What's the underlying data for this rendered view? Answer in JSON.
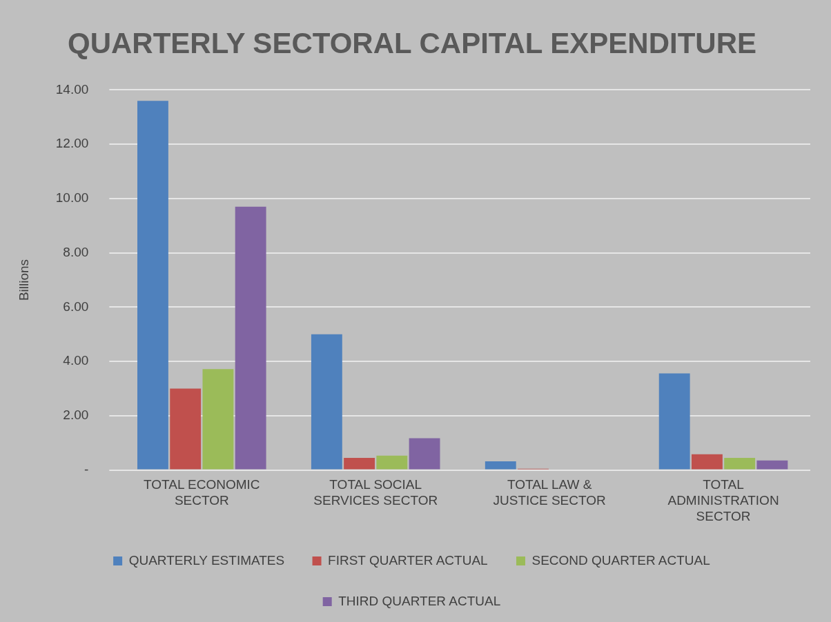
{
  "chart_data": {
    "type": "bar",
    "title": "QUARTERLY SECTORAL CAPITAL EXPENDITURE",
    "ylabel": "Billions",
    "categories": [
      "TOTAL ECONOMIC SECTOR",
      "TOTAL SOCIAL SERVICES SECTOR",
      "TOTAL LAW & JUSTICE SECTOR",
      "TOTAL ADMINISTRATION SECTOR"
    ],
    "series": [
      {
        "name": "QUARTERLY ESTIMATES",
        "color": "#4f81bd",
        "values": [
          13.6,
          5.0,
          0.32,
          3.56
        ]
      },
      {
        "name": "FIRST QUARTER ACTUAL",
        "color": "#c0504d",
        "values": [
          3.0,
          0.45,
          0.05,
          0.58
        ]
      },
      {
        "name": "SECOND QUARTER ACTUAL",
        "color": "#9bbb59",
        "values": [
          3.72,
          0.53,
          null,
          0.45
        ]
      },
      {
        "name": "THIRD QUARTER ACTUAL",
        "color": "#8064a2",
        "values": [
          9.7,
          1.17,
          null,
          0.35
        ]
      }
    ],
    "ylim": [
      0,
      14
    ],
    "yticks": [
      {
        "value": 0,
        "label": "-"
      },
      {
        "value": 2,
        "label": "2.00"
      },
      {
        "value": 4,
        "label": "4.00"
      },
      {
        "value": 6,
        "label": "6.00"
      },
      {
        "value": 8,
        "label": "8.00"
      },
      {
        "value": 10,
        "label": "10.00"
      },
      {
        "value": 12,
        "label": "12.00"
      },
      {
        "value": 14,
        "label": "14.00"
      }
    ],
    "grid": "y",
    "legend": "bottom"
  }
}
